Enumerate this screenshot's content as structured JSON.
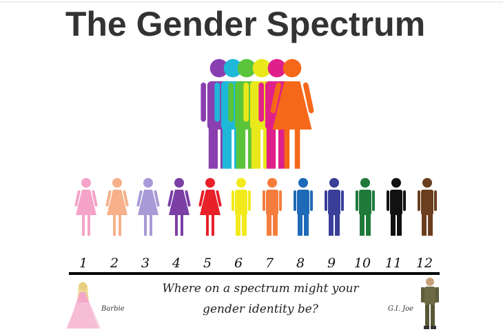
{
  "title": "The Gender Spectrum",
  "figures": [
    {
      "label": "1",
      "color": "#f5a3c8",
      "shape": "female"
    },
    {
      "label": "2",
      "color": "#f6b08a",
      "shape": "female"
    },
    {
      "label": "3",
      "color": "#a79ad6",
      "shape": "female"
    },
    {
      "label": "4",
      "color": "#7b3fa6",
      "shape": "female"
    },
    {
      "label": "5",
      "color": "#e8202a",
      "shape": "female"
    },
    {
      "label": "6",
      "color": "#f2ea1c",
      "shape": "male"
    },
    {
      "label": "7",
      "color": "#f47c3c",
      "shape": "male"
    },
    {
      "label": "8",
      "color": "#1e6ab8",
      "shape": "male"
    },
    {
      "label": "9",
      "color": "#3a3f9a",
      "shape": "male"
    },
    {
      "label": "10",
      "color": "#1f7a3a",
      "shape": "male"
    },
    {
      "label": "11",
      "color": "#111111",
      "shape": "male"
    },
    {
      "label": "12",
      "color": "#6b3e1f",
      "shape": "male"
    }
  ],
  "question": {
    "line1": "Where on a spectrum might your",
    "line2": "gender identity be?"
  },
  "left_label": "Barbie",
  "right_label": "G.I. Joe"
}
